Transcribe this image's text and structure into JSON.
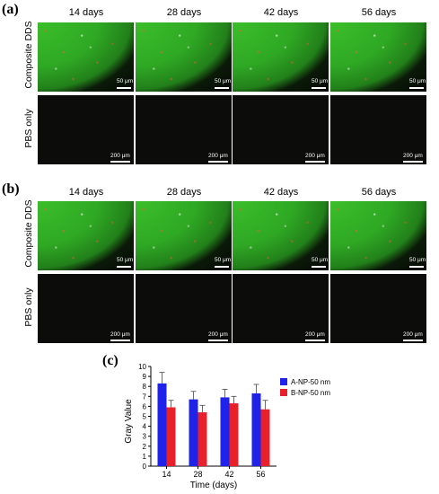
{
  "panels": [
    {
      "letter": "(a)",
      "columns": [
        "14 days",
        "28 days",
        "42 days",
        "56 days"
      ],
      "rows": [
        {
          "label": "Composite DDS",
          "scale": "50 μm",
          "style": "green"
        },
        {
          "label": "PBS only",
          "scale": "200 μm",
          "style": "dark"
        }
      ]
    },
    {
      "letter": "(b)",
      "columns": [
        "14 days",
        "28 days",
        "42 days",
        "56 days"
      ],
      "rows": [
        {
          "label": "Composite DDS",
          "scale": "50 μm",
          "style": "green"
        },
        {
          "label": "PBS only",
          "scale": "200 μm",
          "style": "dark"
        }
      ]
    }
  ],
  "chart_panel_letter": "(c)",
  "chart_data": {
    "type": "bar",
    "categories": [
      "14",
      "28",
      "42",
      "56"
    ],
    "series": [
      {
        "name": "A-NP-50 nm",
        "values": [
          8.3,
          6.7,
          6.9,
          7.3
        ],
        "errors": [
          1.1,
          0.8,
          0.8,
          0.9
        ],
        "color": "#1f22e8"
      },
      {
        "name": "B-NP-50 nm",
        "values": [
          5.9,
          5.4,
          6.3,
          5.7
        ],
        "errors": [
          0.7,
          0.7,
          0.7,
          0.9
        ],
        "color": "#e8202a"
      }
    ],
    "xlabel": "Time (days)",
    "ylabel": "Gray Value",
    "ylim": [
      0,
      10
    ],
    "yticks": [
      0,
      1,
      2,
      3,
      4,
      5,
      6,
      7,
      8,
      9,
      10
    ],
    "legend_position": "top-right",
    "grid": false
  }
}
